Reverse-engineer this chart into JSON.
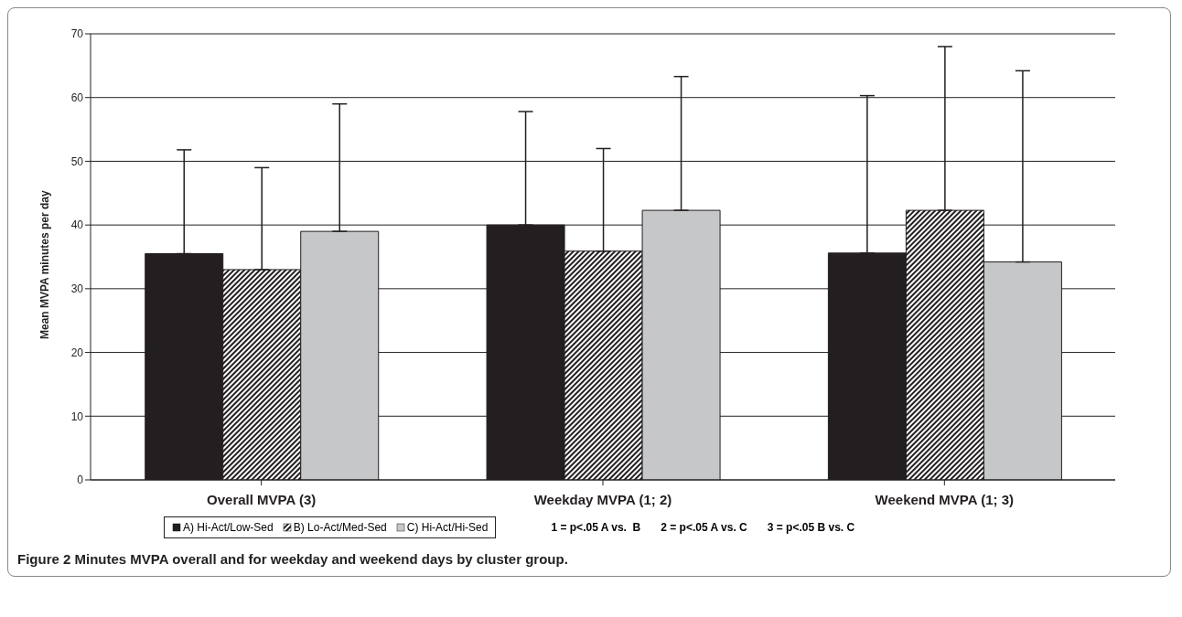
{
  "chart_data": {
    "type": "bar",
    "title": "Figure 2 Minutes MVPA overall and for weekday and weekend days by cluster group.",
    "ylabel": "Mean MVPA minutes per day",
    "categories": [
      "Overall MVPA (3)",
      "Weekday MVPA (1; 2)",
      "Weekend MVPA (1; 3)"
    ],
    "series": [
      {
        "name": "A) Hi-Act/Low-Sed",
        "color": "#231f20",
        "values": [
          35.5,
          40,
          35.6
        ],
        "errors": [
          [
            35.5,
            51.8
          ],
          [
            40,
            57.8
          ],
          [
            35.6,
            60.3
          ]
        ]
      },
      {
        "name": "B) Lo-Act/Med-Sed",
        "color": "#231f20",
        "values": [
          33,
          35.9,
          42.3
        ],
        "errors": [
          [
            33,
            49
          ],
          [
            35.9,
            52
          ],
          [
            42.3,
            68
          ]
        ]
      },
      {
        "name": "C) Hi-Act/Hi-Sed",
        "color": "#c6c7c8",
        "values": [
          39,
          42.3,
          34.2
        ],
        "errors": [
          [
            39,
            59
          ],
          [
            42.3,
            63.3
          ],
          [
            34.2,
            64.2
          ]
        ]
      }
    ],
    "ylim": [
      0,
      70
    ],
    "yticks": [
      0,
      10,
      20,
      30,
      40,
      50,
      60,
      70
    ],
    "grid": "y",
    "legend": "bottom",
    "annotations": [
      "1 = p<.05 A vs.  B",
      "2 = p<.05 A vs. C",
      "3 = p<.05 B vs. C"
    ]
  }
}
